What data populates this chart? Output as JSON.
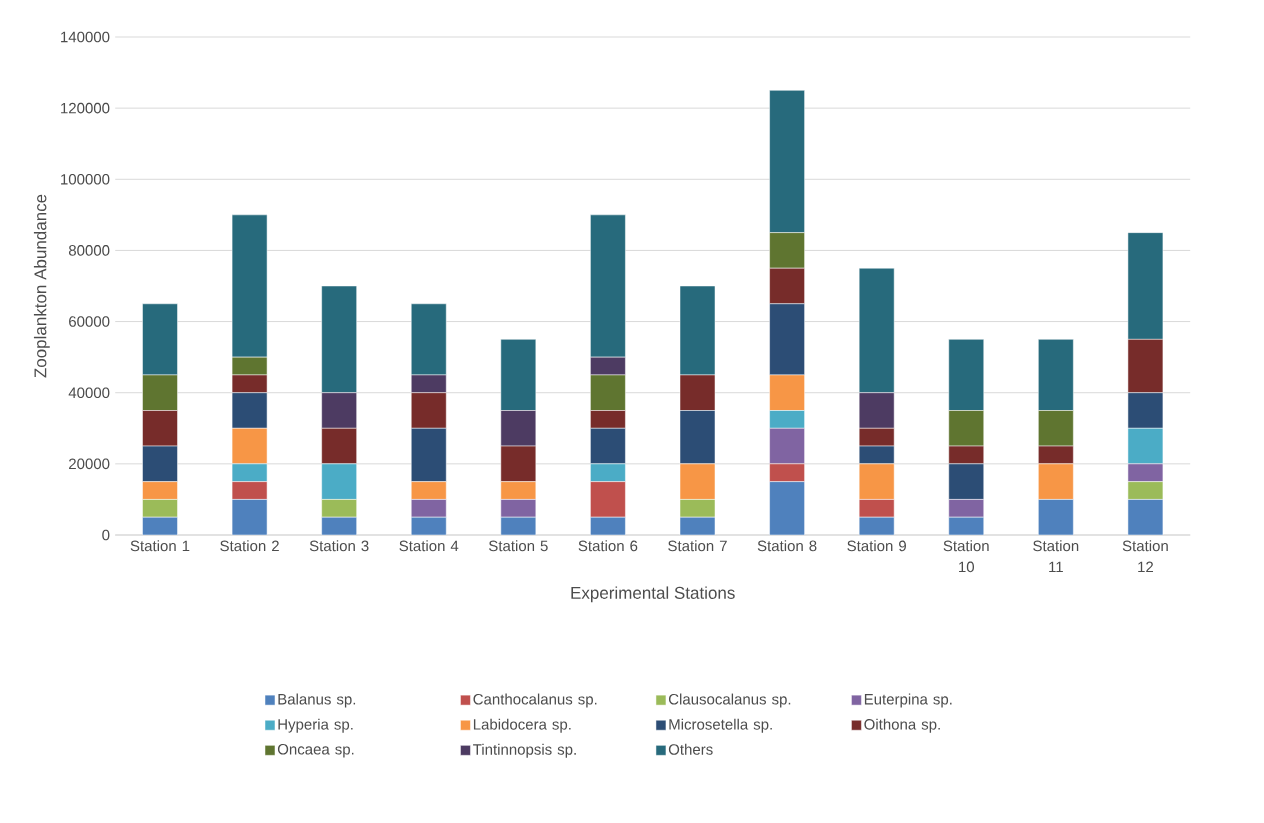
{
  "chart_data": {
    "type": "bar",
    "stacked": true,
    "xlabel": "Experimental Stations",
    "ylabel": "Zooplankton Abundance",
    "categories": [
      "Station 1",
      "Station 2",
      "Station 3",
      "Station 4",
      "Station 5",
      "Station 6",
      "Station 7",
      "Station 8",
      "Station 9",
      "Station 10",
      "Station 11",
      "Station 12"
    ],
    "ylim": [
      0,
      140000
    ],
    "yticks": [
      0,
      20000,
      40000,
      60000,
      80000,
      100000,
      120000,
      140000
    ],
    "grid": "y",
    "legend": "bottom",
    "series": [
      {
        "name": "Balanus sp.",
        "color": "#4f81bd",
        "values": [
          5000,
          10000,
          5000,
          5000,
          5000,
          5000,
          5000,
          15000,
          5000,
          5000,
          10000,
          10000
        ]
      },
      {
        "name": "Canthocalanus sp.",
        "color": "#c0504d",
        "values": [
          0,
          5000,
          0,
          0,
          0,
          10000,
          0,
          5000,
          5000,
          0,
          0,
          0
        ]
      },
      {
        "name": "Clausocalanus sp.",
        "color": "#9bbb59",
        "values": [
          5000,
          0,
          5000,
          0,
          0,
          0,
          5000,
          0,
          0,
          0,
          0,
          5000
        ]
      },
      {
        "name": "Euterpina sp.",
        "color": "#8064a2",
        "values": [
          0,
          0,
          0,
          5000,
          5000,
          0,
          0,
          10000,
          0,
          5000,
          0,
          5000
        ]
      },
      {
        "name": "Hyperia sp.",
        "color": "#4bacc6",
        "values": [
          0,
          5000,
          10000,
          0,
          0,
          5000,
          0,
          5000,
          0,
          0,
          0,
          10000
        ]
      },
      {
        "name": "Labidocera sp.",
        "color": "#f79646",
        "values": [
          5000,
          10000,
          0,
          5000,
          5000,
          0,
          10000,
          10000,
          10000,
          0,
          10000,
          0
        ]
      },
      {
        "name": "Microsetella sp.",
        "color": "#2c4d75",
        "values": [
          10000,
          10000,
          0,
          15000,
          0,
          10000,
          15000,
          20000,
          5000,
          10000,
          0,
          10000
        ]
      },
      {
        "name": "Oithona sp.",
        "color": "#772c2a",
        "values": [
          10000,
          5000,
          10000,
          10000,
          10000,
          5000,
          10000,
          10000,
          5000,
          5000,
          5000,
          15000
        ]
      },
      {
        "name": "Oncaea sp.",
        "color": "#5f7530",
        "values": [
          10000,
          5000,
          0,
          0,
          0,
          10000,
          0,
          10000,
          0,
          10000,
          10000,
          0
        ]
      },
      {
        "name": "Tintinnopsis sp.",
        "color": "#4d3b62",
        "values": [
          0,
          0,
          10000,
          5000,
          10000,
          5000,
          0,
          0,
          10000,
          0,
          0,
          0
        ]
      },
      {
        "name": "Others",
        "color": "#276a7c",
        "values": [
          20000,
          40000,
          30000,
          20000,
          20000,
          40000,
          25000,
          40000,
          35000,
          20000,
          20000,
          30000
        ]
      }
    ]
  }
}
